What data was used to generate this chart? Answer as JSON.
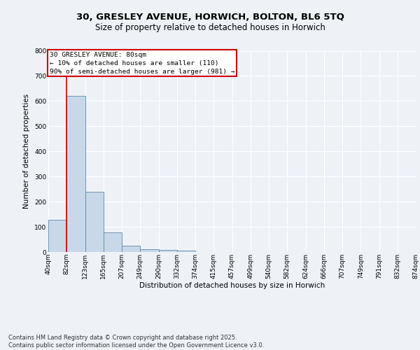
{
  "title1": "30, GRESLEY AVENUE, HORWICH, BOLTON, BL6 5TQ",
  "title2": "Size of property relative to detached houses in Horwich",
  "xlabel": "Distribution of detached houses by size in Horwich",
  "ylabel": "Number of detached properties",
  "bins": [
    "40sqm",
    "82sqm",
    "123sqm",
    "165sqm",
    "207sqm",
    "249sqm",
    "290sqm",
    "332sqm",
    "374sqm",
    "415sqm",
    "457sqm",
    "499sqm",
    "540sqm",
    "582sqm",
    "624sqm",
    "666sqm",
    "707sqm",
    "749sqm",
    "791sqm",
    "832sqm",
    "874sqm"
  ],
  "values": [
    128,
    620,
    240,
    77,
    25,
    10,
    8,
    5,
    0,
    0,
    0,
    0,
    0,
    0,
    0,
    0,
    0,
    0,
    0,
    0
  ],
  "bar_color": "#c8d8e8",
  "bar_edge_color": "#5a8ab0",
  "vline_x": 1,
  "vline_color": "#cc0000",
  "annotation_text": "30 GRESLEY AVENUE: 80sqm\n← 10% of detached houses are smaller (110)\n90% of semi-detached houses are larger (981) →",
  "annotation_box_color": "#cc0000",
  "annotation_text_color": "#000000",
  "bg_color": "#eef2f7",
  "plot_bg_color": "#eef2f7",
  "grid_color": "#ffffff",
  "ylim": [
    0,
    800
  ],
  "yticks": [
    0,
    100,
    200,
    300,
    400,
    500,
    600,
    700,
    800
  ],
  "footer_text": "Contains HM Land Registry data © Crown copyright and database right 2025.\nContains public sector information licensed under the Open Government Licence v3.0.",
  "title_fontsize": 9.5,
  "subtitle_fontsize": 8.5,
  "axis_label_fontsize": 7.5,
  "tick_fontsize": 6.5,
  "footer_fontsize": 6,
  "annotation_fontsize": 6.8
}
